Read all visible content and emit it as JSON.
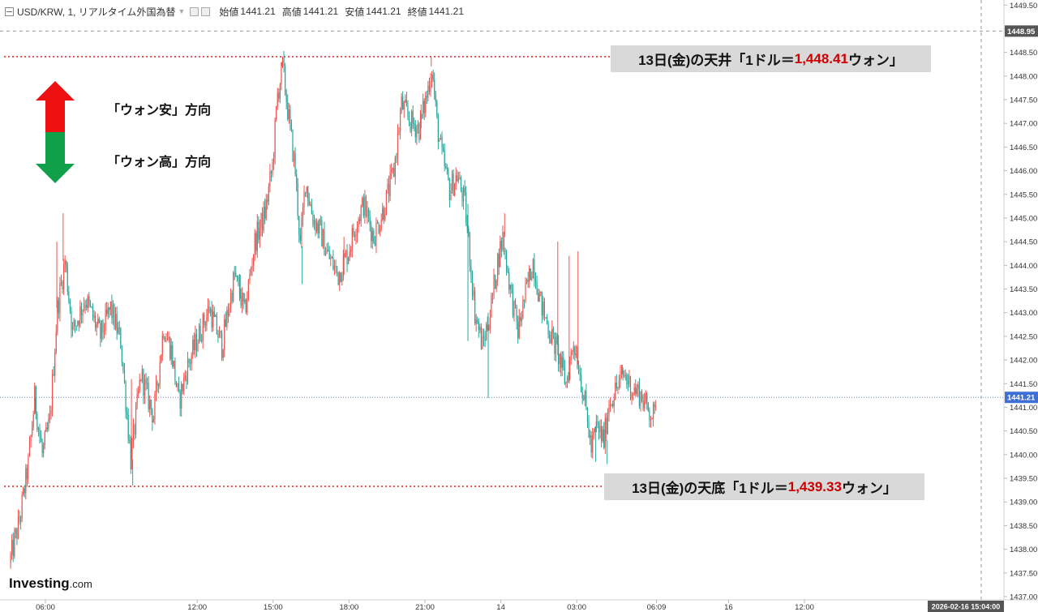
{
  "header": {
    "symbol": "USD/KRW, 1, リアルタイム外国為替",
    "open_label": "始値",
    "open_value": "1441.21",
    "high_label": "高値",
    "high_value": "1441.21",
    "low_label": "安値",
    "low_value": "1441.21",
    "close_label": "終値",
    "close_value": "1441.21"
  },
  "annotations": {
    "high_prefix": "13日(金)の天井「1ドル＝",
    "high_value": "1,448.41",
    "high_suffix": "ウォン」",
    "low_prefix": "13日(金)の天底「1ドル＝",
    "low_value": "1,439.33",
    "low_suffix": "ウォン」",
    "weak_won": "「ウォン安」方向",
    "strong_won": "「ウォン高」方向"
  },
  "logo": {
    "main": "Investing",
    "suffix": ".com"
  },
  "colors": {
    "up": "#ef5350",
    "down": "#26a69a",
    "arrow_up": "#ee1111",
    "arrow_down": "#11a04a",
    "ref_line": "#dd2222",
    "price_line": "#6b8fd6"
  },
  "chart_data": {
    "type": "candlestick",
    "ylim": [
      1437.0,
      1449.6
    ],
    "yticks": [
      "1437.00",
      "1437.50",
      "1438.00",
      "1438.50",
      "1439.00",
      "1439.50",
      "1440.00",
      "1440.50",
      "1441.00",
      "1441.50",
      "1442.00",
      "1442.50",
      "1443.00",
      "1443.50",
      "1444.00",
      "1444.50",
      "1445.00",
      "1445.50",
      "1446.00",
      "1446.50",
      "1447.00",
      "1447.50",
      "1448.00",
      "1448.50",
      "1449.00",
      "1449.50"
    ],
    "xticks": [
      {
        "label": "06:00",
        "t": 6.0
      },
      {
        "label": "12:00",
        "t": 12.0
      },
      {
        "label": "15:00",
        "t": 15.0
      },
      {
        "label": "18:00",
        "t": 18.0
      },
      {
        "label": "21:00",
        "t": 21.0
      },
      {
        "label": "14",
        "t": 24.0
      },
      {
        "label": "03:00",
        "t": 27.0
      },
      {
        "label": "06:09",
        "t": 30.15
      },
      {
        "label": "16",
        "t": 33.0
      },
      {
        "label": "12:00",
        "t": 36.0
      }
    ],
    "current_price": "1441.21",
    "crosshair_price": "1448.95",
    "crosshair_time": "2026-02-16 15:04:00",
    "high_ref": 1448.41,
    "low_ref": 1439.33,
    "path": [
      [
        4.6,
        1437.7
      ],
      [
        5.0,
        1438.6
      ],
      [
        5.35,
        1439.8
      ],
      [
        5.6,
        1441.2
      ],
      [
        5.9,
        1440.0
      ],
      [
        6.2,
        1440.7
      ],
      [
        6.5,
        1443.1
      ],
      [
        6.8,
        1444.1
      ],
      [
        7.1,
        1442.6
      ],
      [
        7.6,
        1443.3
      ],
      [
        8.2,
        1442.5
      ],
      [
        8.6,
        1443.1
      ],
      [
        9.0,
        1442.4
      ],
      [
        9.4,
        1439.9
      ],
      [
        9.8,
        1441.7
      ],
      [
        10.3,
        1440.8
      ],
      [
        10.7,
        1442.7
      ],
      [
        11.0,
        1442.2
      ],
      [
        11.3,
        1441.1
      ],
      [
        11.6,
        1441.8
      ],
      [
        12.0,
        1442.4
      ],
      [
        12.5,
        1443.1
      ],
      [
        13.0,
        1442.3
      ],
      [
        13.5,
        1443.8
      ],
      [
        13.9,
        1443.0
      ],
      [
        14.3,
        1444.5
      ],
      [
        14.7,
        1445.1
      ],
      [
        15.0,
        1446.1
      ],
      [
        15.2,
        1447.6
      ],
      [
        15.4,
        1448.2
      ],
      [
        15.6,
        1447.3
      ],
      [
        15.9,
        1446.0
      ],
      [
        16.1,
        1444.4
      ],
      [
        16.3,
        1445.8
      ],
      [
        16.6,
        1445.0
      ],
      [
        16.9,
        1444.7
      ],
      [
        17.2,
        1444.2
      ],
      [
        17.6,
        1443.8
      ],
      [
        18.0,
        1444.3
      ],
      [
        18.3,
        1444.9
      ],
      [
        18.6,
        1445.3
      ],
      [
        19.0,
        1444.6
      ],
      [
        19.4,
        1445.2
      ],
      [
        19.8,
        1446.0
      ],
      [
        20.1,
        1447.4
      ],
      [
        20.5,
        1447.0
      ],
      [
        20.8,
        1446.9
      ],
      [
        21.1,
        1447.6
      ],
      [
        21.3,
        1448.2
      ],
      [
        21.5,
        1447.0
      ],
      [
        21.7,
        1446.3
      ],
      [
        22.0,
        1445.6
      ],
      [
        22.3,
        1445.9
      ],
      [
        22.6,
        1445.3
      ],
      [
        22.8,
        1444.2
      ],
      [
        23.0,
        1443.0
      ],
      [
        23.3,
        1442.3
      ],
      [
        23.6,
        1443.0
      ],
      [
        23.9,
        1444.1
      ],
      [
        24.1,
        1444.6
      ],
      [
        24.4,
        1443.5
      ],
      [
        24.7,
        1442.6
      ],
      [
        25.0,
        1443.4
      ],
      [
        25.3,
        1444.1
      ],
      [
        25.6,
        1443.2
      ],
      [
        25.9,
        1442.7
      ],
      [
        26.3,
        1442.1
      ],
      [
        26.6,
        1441.5
      ],
      [
        26.9,
        1442.4
      ],
      [
        27.1,
        1441.9
      ],
      [
        27.4,
        1440.9
      ],
      [
        27.6,
        1440.1
      ],
      [
        27.8,
        1440.6
      ],
      [
        28.1,
        1440.3
      ],
      [
        28.3,
        1441.1
      ],
      [
        28.6,
        1441.4
      ],
      [
        28.9,
        1441.7
      ],
      [
        29.2,
        1441.4
      ],
      [
        29.5,
        1441.3
      ],
      [
        29.8,
        1441.0
      ],
      [
        30.1,
        1440.8
      ],
      [
        30.15,
        1441.21
      ]
    ],
    "spikes": [
      {
        "t": 5.6,
        "to": 1440.9
      },
      {
        "t": 6.45,
        "to": 1444.5
      },
      {
        "t": 6.7,
        "to": 1445.1
      },
      {
        "t": 9.45,
        "to": 1439.35
      },
      {
        "t": 9.4,
        "to": 1441.6
      },
      {
        "t": 13.7,
        "to": 1443.3
      },
      {
        "t": 15.35,
        "to": 1448.3
      },
      {
        "t": 16.15,
        "to": 1443.6
      },
      {
        "t": 17.8,
        "to": 1444.6
      },
      {
        "t": 21.25,
        "to": 1448.41
      },
      {
        "t": 20.85,
        "to": 1447.4
      },
      {
        "t": 22.7,
        "to": 1442.4
      },
      {
        "t": 23.5,
        "to": 1441.2
      },
      {
        "t": 24.15,
        "to": 1445.1
      },
      {
        "t": 26.25,
        "to": 1444.5
      },
      {
        "t": 26.7,
        "to": 1444.2
      },
      {
        "t": 27.05,
        "to": 1444.3
      },
      {
        "t": 27.75,
        "to": 1439.85
      },
      {
        "t": 28.2,
        "to": 1439.8
      },
      {
        "t": 28.8,
        "to": 1441.9
      }
    ]
  }
}
